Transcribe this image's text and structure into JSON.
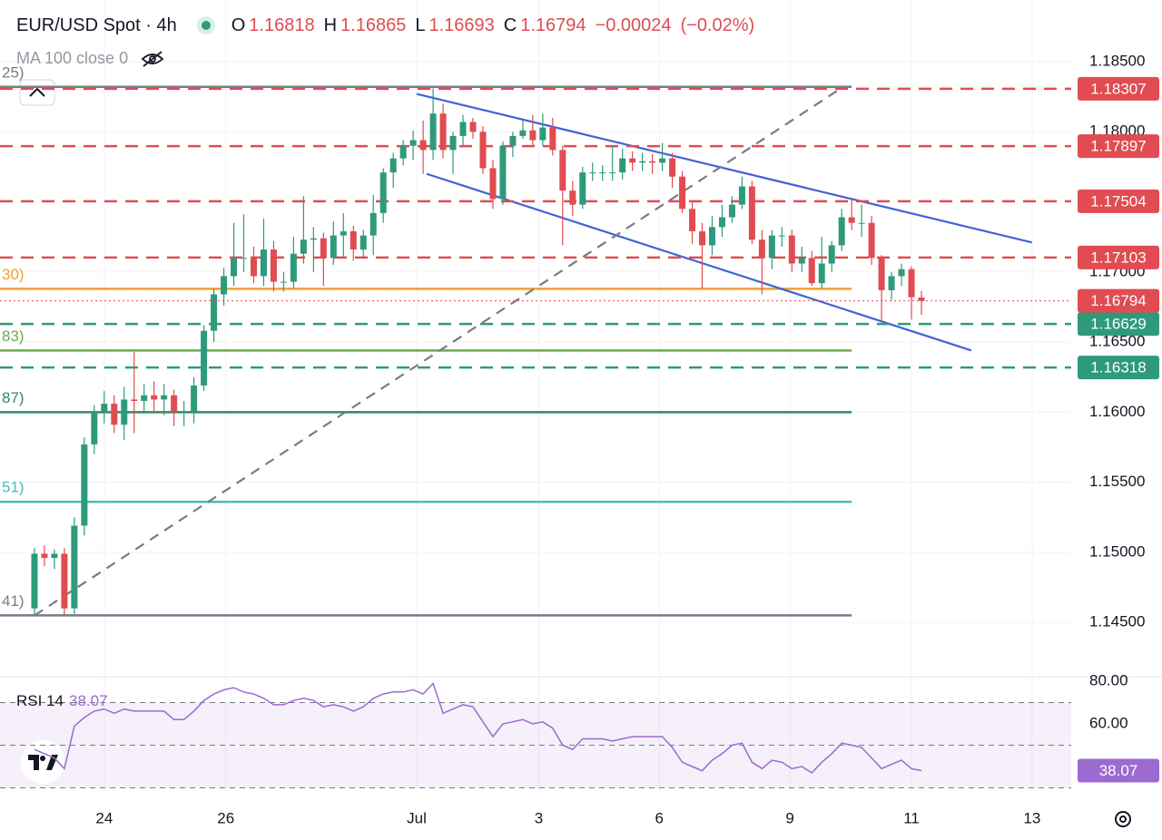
{
  "chart_data": {
    "type": "candlestick",
    "title": "EUR/USD Spot · 4h",
    "ohlc_letters": [
      "O",
      "H",
      "L",
      "C"
    ],
    "change": "−0.00024",
    "change_pct": "(−0.02%)",
    "indicator_label": "MA 100 close 0",
    "up_color": "#2e9a7b",
    "down_color": "#e04c51",
    "open": [
      1.146,
      1.1499,
      1.1496,
      1.1499,
      1.146,
      1.1519,
      1.1577,
      1.16,
      1.1606,
      1.1591,
      1.1609,
      1.1608,
      1.1612,
      1.1609,
      1.1612,
      1.16,
      1.16,
      1.1619,
      1.1658,
      1.1684,
      1.1697,
      1.171,
      1.171,
      1.1697,
      1.1716,
      1.1693,
      1.1693,
      1.1713,
      1.1723,
      1.1724,
      1.171,
      1.1726,
      1.1729,
      1.1716,
      1.1726,
      1.1742,
      1.1771,
      1.1781,
      1.179,
      1.1794,
      1.1787,
      1.1813,
      1.1787,
      1.1797,
      1.1807,
      1.18,
      1.1774,
      1.1752,
      1.179,
      1.1797,
      1.1801,
      1.1794,
      1.1803,
      1.1787,
      1.1758,
      1.1748,
      1.1771,
      1.1771,
      1.1771,
      1.1771,
      1.1781,
      1.1778,
      1.1779,
      1.1778,
      1.1781,
      1.1768,
      1.1745,
      1.1729,
      1.1719,
      1.1732,
      1.1739,
      1.1748,
      1.1761,
      1.1723,
      1.171,
      1.1726,
      1.1726,
      1.1706,
      1.171,
      1.1692,
      1.1706,
      1.1719,
      1.1739,
      1.1735,
      1.1735,
      1.171,
      1.1687,
      1.1697,
      1.1702,
      1.16818
    ],
    "high": [
      1.1503,
      1.1505,
      1.1502,
      1.1503,
      1.1525,
      1.1582,
      1.1605,
      1.1615,
      1.1612,
      1.1618,
      1.1643,
      1.162,
      1.1622,
      1.162,
      1.1616,
      1.1608,
      1.1625,
      1.1662,
      1.1688,
      1.1703,
      1.1735,
      1.1741,
      1.1718,
      1.1738,
      1.1722,
      1.17,
      1.1725,
      1.1754,
      1.1732,
      1.1728,
      1.1736,
      1.1742,
      1.1733,
      1.173,
      1.1755,
      1.1774,
      1.1785,
      1.1794,
      1.1801,
      1.1808,
      1.1831,
      1.182,
      1.18,
      1.1812,
      1.181,
      1.1804,
      1.178,
      1.1793,
      1.18,
      1.1808,
      1.1812,
      1.1813,
      1.181,
      1.179,
      1.1765,
      1.1775,
      1.1778,
      1.1776,
      1.179,
      1.1788,
      1.1786,
      1.1785,
      1.1784,
      1.1792,
      1.1785,
      1.1772,
      1.175,
      1.1735,
      1.174,
      1.1748,
      1.1754,
      1.1768,
      1.1765,
      1.173,
      1.173,
      1.1732,
      1.173,
      1.1718,
      1.1715,
      1.1725,
      1.1722,
      1.1745,
      1.1752,
      1.1748,
      1.174,
      1.1712,
      1.17,
      1.1706,
      1.1704,
      1.16865
    ],
    "low": [
      1.1455,
      1.149,
      1.1488,
      1.1455,
      1.1456,
      1.1512,
      1.157,
      1.1592,
      1.1585,
      1.158,
      1.1585,
      1.16,
      1.16,
      1.1598,
      1.159,
      1.159,
      1.1592,
      1.1615,
      1.165,
      1.1676,
      1.169,
      1.17,
      1.1692,
      1.169,
      1.1686,
      1.1686,
      1.1688,
      1.1706,
      1.17,
      1.169,
      1.1705,
      1.171,
      1.1708,
      1.171,
      1.1712,
      1.1735,
      1.176,
      1.1776,
      1.178,
      1.177,
      1.178,
      1.1781,
      1.177,
      1.179,
      1.1795,
      1.177,
      1.1745,
      1.1748,
      1.1782,
      1.1795,
      1.179,
      1.179,
      1.1783,
      1.1719,
      1.174,
      1.1745,
      1.1765,
      1.1765,
      1.1765,
      1.1766,
      1.1772,
      1.1772,
      1.177,
      1.1772,
      1.176,
      1.1742,
      1.172,
      1.1688,
      1.1712,
      1.1725,
      1.1735,
      1.1745,
      1.172,
      1.1684,
      1.1702,
      1.1718,
      1.17,
      1.17,
      1.169,
      1.1688,
      1.17,
      1.1715,
      1.173,
      1.1725,
      1.1705,
      1.1664,
      1.168,
      1.169,
      1.1666,
      1.16693
    ],
    "close": [
      1.1499,
      1.1496,
      1.1499,
      1.146,
      1.1519,
      1.1577,
      1.16,
      1.1606,
      1.1591,
      1.1609,
      1.1608,
      1.1612,
      1.1609,
      1.1612,
      1.16,
      1.16,
      1.1619,
      1.1658,
      1.1684,
      1.1697,
      1.171,
      1.171,
      1.1697,
      1.1716,
      1.1693,
      1.1693,
      1.1713,
      1.1723,
      1.1724,
      1.171,
      1.1726,
      1.1729,
      1.1716,
      1.1726,
      1.1742,
      1.1771,
      1.1781,
      1.179,
      1.1794,
      1.1787,
      1.1813,
      1.1787,
      1.1797,
      1.1807,
      1.18,
      1.1774,
      1.1752,
      1.179,
      1.1797,
      1.1801,
      1.1794,
      1.1803,
      1.1787,
      1.1758,
      1.1748,
      1.1771,
      1.1771,
      1.1771,
      1.1771,
      1.1781,
      1.1778,
      1.1779,
      1.1778,
      1.1781,
      1.1768,
      1.1745,
      1.1729,
      1.1719,
      1.1732,
      1.1739,
      1.1748,
      1.1761,
      1.1723,
      1.171,
      1.1726,
      1.1726,
      1.1706,
      1.171,
      1.1692,
      1.1706,
      1.1719,
      1.1739,
      1.1735,
      1.1735,
      1.171,
      1.1687,
      1.1697,
      1.1702,
      1.1682,
      1.16794
    ],
    "xlim": [
      -3.46,
      104.03
    ],
    "xticks": [
      {
        "value": 7.0,
        "label": "24"
      },
      {
        "value": 19.2,
        "label": "26"
      },
      {
        "value": 38.35,
        "label": "Jul"
      },
      {
        "value": 50.6,
        "label": "3"
      },
      {
        "value": 62.7,
        "label": "6"
      },
      {
        "value": 75.8,
        "label": "9"
      },
      {
        "value": 88.0,
        "label": "11"
      },
      {
        "value": 100.1,
        "label": "13"
      }
    ],
    "ylim": [
      1.14119,
      1.1894
    ],
    "yticks": [
      {
        "value": 1.185,
        "label": "1.18500"
      },
      {
        "value": 1.18,
        "label": "1.18000"
      },
      {
        "value": 1.17,
        "label": "1.17000"
      },
      {
        "value": 1.165,
        "label": "1.16500"
      },
      {
        "value": 1.16,
        "label": "1.16000"
      },
      {
        "value": 1.155,
        "label": "1.15500"
      },
      {
        "value": 1.15,
        "label": "1.15000"
      },
      {
        "value": 1.145,
        "label": "1.14500"
      }
    ],
    "grid": true,
    "levels": [
      {
        "value": 1.18307,
        "color": "#e04c51"
      },
      {
        "value": 1.17897,
        "color": "#e04c51"
      },
      {
        "value": 1.17504,
        "color": "#e04c51"
      },
      {
        "value": 1.17103,
        "color": "#e04c51"
      },
      {
        "value": 1.16629,
        "color": "#2e9a7b"
      },
      {
        "value": 1.16318,
        "color": "#2e9a7b"
      }
    ],
    "fib_end": 82.0,
    "fib_lines": [
      {
        "value": 1.1832,
        "label": "25)",
        "color": "#787b86"
      },
      {
        "value": 1.1688,
        "label": "30)",
        "color": "#f0a030"
      },
      {
        "value": 1.1644,
        "label": "83)",
        "color": "#6aaa50"
      },
      {
        "value": 1.16,
        "label": "87)",
        "color": "#2e8a60"
      },
      {
        "value": 1.1536,
        "label": "51)",
        "color": "#44bfbf"
      },
      {
        "value": 1.1455,
        "label": "41)",
        "color": "#787b86"
      }
    ],
    "trendlines": [
      {
        "points": [
          [
            38.35,
            1.1827
          ],
          [
            100.1,
            1.1721
          ]
        ],
        "color": "#3f63d8",
        "style": "solid"
      },
      {
        "points": [
          [
            39.35,
            1.177
          ],
          [
            94.0,
            1.1644
          ]
        ],
        "color": "#3f63d8",
        "style": "solid"
      },
      {
        "points": [
          [
            0,
            1.1455
          ],
          [
            80.5,
            1.1829
          ]
        ],
        "color": "#787b86",
        "style": "dashed"
      }
    ],
    "rsi": {
      "label": "RSI 14",
      "color": "#9c6ad0",
      "values": [
        48,
        46,
        44,
        39,
        59,
        63,
        66,
        67,
        65,
        67,
        66,
        66,
        66,
        66,
        62,
        62,
        66,
        71,
        74,
        76,
        77,
        75,
        74,
        72,
        69,
        69,
        71,
        72,
        71,
        68,
        69,
        68,
        66,
        68,
        72,
        74,
        75,
        75,
        76,
        74,
        79,
        65,
        67,
        69,
        68,
        61,
        54,
        60,
        61,
        62,
        60,
        61,
        58,
        50,
        48,
        53,
        53,
        53,
        52,
        53,
        54,
        54,
        54,
        54,
        49,
        42,
        40,
        38,
        43,
        46,
        50,
        51,
        42,
        39,
        43,
        42,
        39,
        40,
        37,
        42,
        46,
        51,
        50,
        49,
        44,
        39,
        41,
        43,
        39,
        38.07
      ],
      "ylim": [
        26.8,
        81.3
      ],
      "yticks": [
        {
          "value": 80,
          "label": "80.00"
        },
        {
          "value": 60,
          "label": "60.00"
        }
      ],
      "bands": [
        70,
        50,
        30
      ]
    }
  }
}
